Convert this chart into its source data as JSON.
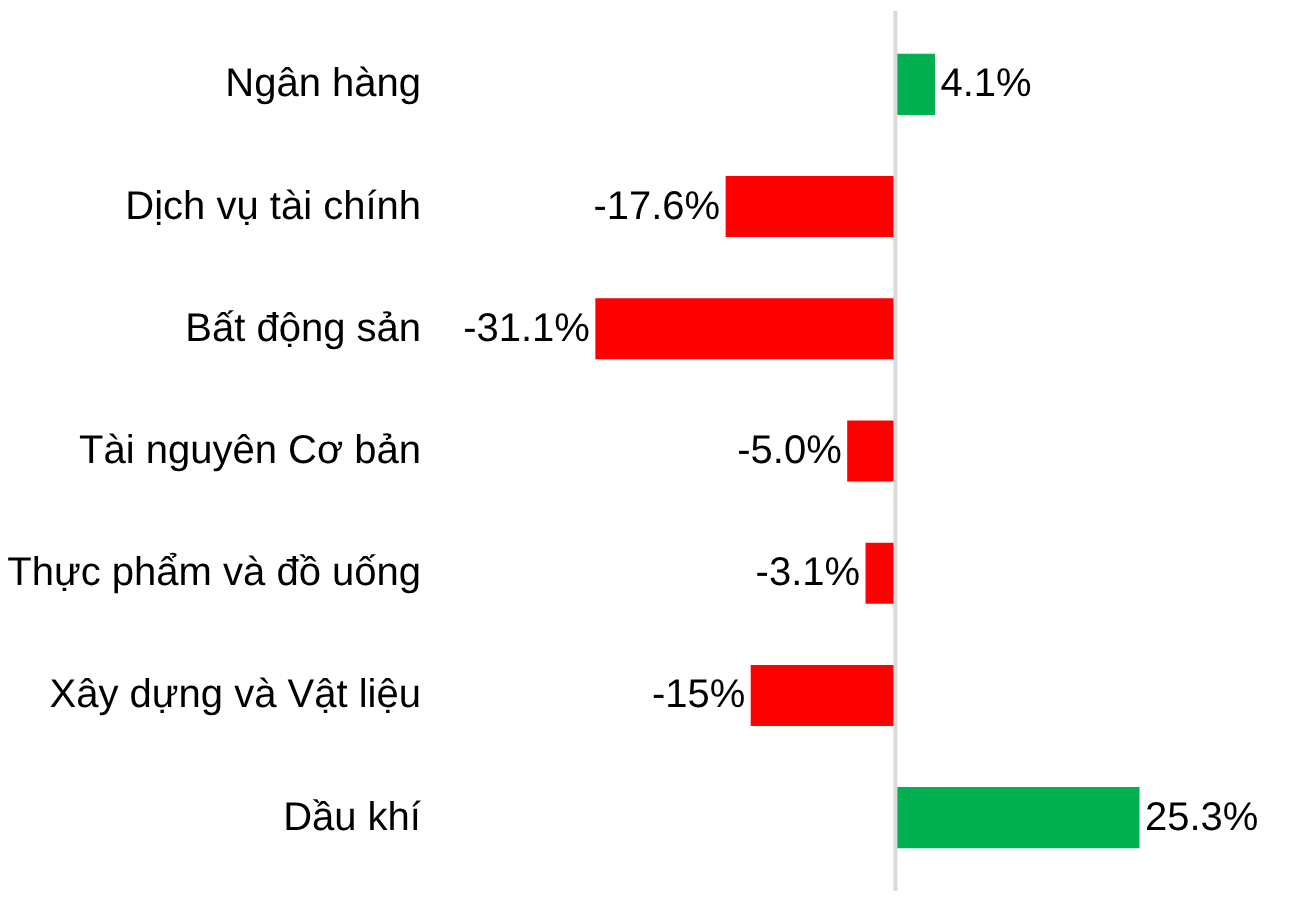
{
  "chart_data": {
    "type": "bar",
    "orientation": "horizontal",
    "categories": [
      "Ngân hàng",
      "Dịch vụ tài chính",
      "Bất động sản",
      "Tài nguyên Cơ bản",
      "Thực phẩm và đồ uống",
      "Xây dựng và Vật liệu",
      "Dầu khí"
    ],
    "values": [
      4.1,
      -17.6,
      -31.1,
      -5.0,
      -3.1,
      -15,
      25.3
    ],
    "colors": [
      "#00b050",
      "#ff0000",
      "#ff0000",
      "#ff0000",
      "#ff0000",
      "#ff0000",
      "#00b050"
    ],
    "value_labels": [
      "4.1%",
      "-17.6%",
      "-31.1%",
      "-5.0%",
      "-3.1%",
      "-15%",
      "25.3%"
    ],
    "grid": false
  }
}
